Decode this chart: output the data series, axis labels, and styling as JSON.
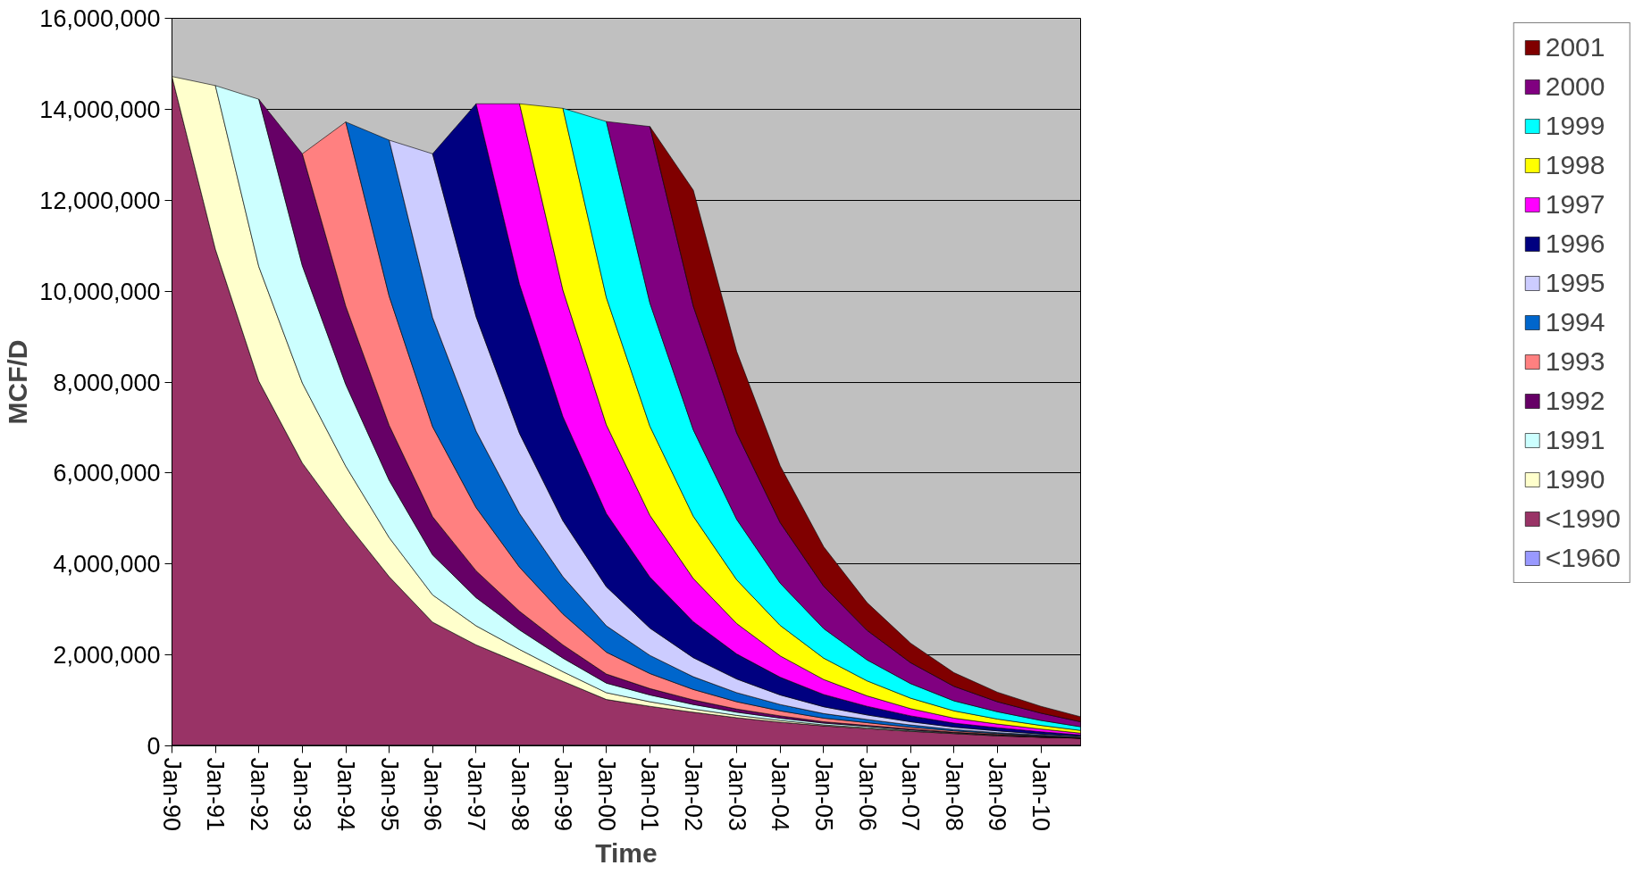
{
  "chart_data": {
    "type": "area",
    "stacked": true,
    "xlabel": "Time",
    "ylabel": "MCF/D",
    "legend": "right",
    "grid": "y",
    "x": [
      "1990-01",
      "1991-01",
      "1992-01",
      "1993-01",
      "1994-01",
      "1995-01",
      "1996-01",
      "1997-01",
      "1998-01",
      "1999-01",
      "2000-01",
      "2001-01",
      "2002-01",
      "2003-01",
      "2004-01",
      "2005-01",
      "2006-01",
      "2007-01",
      "2008-01",
      "2009-01",
      "2010-01",
      "2010-12"
    ],
    "xlim": [
      "1990-01",
      "2010-12"
    ],
    "xticks": [
      {
        "value": "1990-01",
        "label": "Jan-90"
      },
      {
        "value": "1991-01",
        "label": "Jan-91"
      },
      {
        "value": "1992-01",
        "label": "Jan-92"
      },
      {
        "value": "1993-01",
        "label": "Jan-93"
      },
      {
        "value": "1994-01",
        "label": "Jan-94"
      },
      {
        "value": "1995-01",
        "label": "Jan-95"
      },
      {
        "value": "1996-01",
        "label": "Jan-96"
      },
      {
        "value": "1997-01",
        "label": "Jan-97"
      },
      {
        "value": "1998-01",
        "label": "Jan-98"
      },
      {
        "value": "1999-01",
        "label": "Jan-99"
      },
      {
        "value": "2000-01",
        "label": "Jan-00"
      },
      {
        "value": "2001-01",
        "label": "Jan-01"
      },
      {
        "value": "2002-01",
        "label": "Jan-02"
      },
      {
        "value": "2003-01",
        "label": "Jan-03"
      },
      {
        "value": "2004-01",
        "label": "Jan-04"
      },
      {
        "value": "2005-01",
        "label": "Jan-05"
      },
      {
        "value": "2006-01",
        "label": "Jan-06"
      },
      {
        "value": "2007-01",
        "label": "Jan-07"
      },
      {
        "value": "2008-01",
        "label": "Jan-08"
      },
      {
        "value": "2009-01",
        "label": "Jan-09"
      },
      {
        "value": "2010-01",
        "label": "Jan-10"
      }
    ],
    "ylim": [
      0,
      16000000
    ],
    "yticks": [
      0,
      {
        "value": 2000000,
        "label": "2,000,000"
      },
      {
        "value": 4000000,
        "label": "4,000,000"
      },
      {
        "value": 6000000,
        "label": "6,000,000"
      },
      {
        "value": 8000000,
        "label": "8,000,000"
      },
      {
        "value": 10000000,
        "label": "10,000,000"
      },
      {
        "value": 12000000,
        "label": "12,000,000"
      },
      {
        "value": 14000000,
        "label": "14,000,000"
      },
      {
        "value": 16000000,
        "label": "16,000,000"
      }
    ],
    "series": [
      {
        "name": "<1960",
        "color": "#9999ff",
        "values": [
          20000,
          20000,
          20000,
          20000,
          20000,
          20000,
          20000,
          20000,
          20000,
          20000,
          20000,
          20000,
          20000,
          20000,
          20000,
          20000,
          20000,
          20000,
          20000,
          20000,
          20000,
          20000
        ]
      },
      {
        "name": "<1990",
        "color": "#993366",
        "values": [
          14700000,
          10900000,
          8000000,
          6200000,
          4900000,
          3700000,
          2700000,
          2200000,
          1800000,
          1400000,
          1000000,
          850000,
          720000,
          600000,
          500000,
          420000,
          360000,
          300000,
          250000,
          200000,
          170000,
          150000
        ]
      },
      {
        "name": "1990",
        "color": "#ffffcc",
        "values": [
          0,
          3600000,
          2520000,
          1760000,
          1230000,
          860000,
          600000,
          420000,
          300000,
          210000,
          150000,
          100000,
          70000,
          50000,
          40000,
          20000,
          20000,
          10000,
          10000,
          10000,
          0,
          0
        ]
      },
      {
        "name": "1991",
        "color": "#ccffff",
        "values": [
          null,
          0,
          3680000,
          2580000,
          1800000,
          1260000,
          880000,
          620000,
          430000,
          300000,
          210000,
          150000,
          100000,
          70000,
          50000,
          40000,
          30000,
          20000,
          10000,
          10000,
          10000,
          0
        ]
      },
      {
        "name": "1992",
        "color": "#660066",
        "values": [
          null,
          null,
          0,
          2460000,
          1720000,
          1210000,
          840000,
          590000,
          410000,
          290000,
          200000,
          140000,
          100000,
          70000,
          50000,
          30000,
          20000,
          20000,
          10000,
          10000,
          10000,
          0
        ]
      },
      {
        "name": "1993",
        "color": "#ff8080",
        "values": [
          null,
          null,
          null,
          0,
          4050000,
          2840000,
          1980000,
          1390000,
          970000,
          680000,
          480000,
          330000,
          230000,
          160000,
          110000,
          80000,
          60000,
          40000,
          30000,
          20000,
          10000,
          10000
        ]
      },
      {
        "name": "1994",
        "color": "#0066cc",
        "values": [
          null,
          null,
          null,
          null,
          0,
          3430000,
          2400000,
          1680000,
          1180000,
          820000,
          580000,
          400000,
          280000,
          200000,
          140000,
          100000,
          70000,
          50000,
          30000,
          20000,
          20000,
          10000
        ]
      },
      {
        "name": "1995",
        "color": "#ccccff",
        "values": [
          null,
          null,
          null,
          null,
          null,
          0,
          3600000,
          2520000,
          1760000,
          1230000,
          860000,
          600000,
          420000,
          300000,
          210000,
          150000,
          100000,
          70000,
          50000,
          40000,
          20000,
          20000
        ]
      },
      {
        "name": "1996",
        "color": "#000080",
        "values": [
          null,
          null,
          null,
          null,
          null,
          null,
          0,
          4680000,
          3280000,
          2290000,
          1610000,
          1120000,
          790000,
          550000,
          390000,
          270000,
          190000,
          130000,
          90000,
          70000,
          50000,
          30000
        ]
      },
      {
        "name": "1997",
        "color": "#ff00ff",
        "values": [
          null,
          null,
          null,
          null,
          null,
          null,
          null,
          0,
          3970000,
          2780000,
          1950000,
          1360000,
          950000,
          670000,
          470000,
          330000,
          230000,
          160000,
          110000,
          80000,
          60000,
          40000
        ]
      },
      {
        "name": "1998",
        "color": "#ffff00",
        "values": [
          null,
          null,
          null,
          null,
          null,
          null,
          null,
          null,
          0,
          4000000,
          2800000,
          1960000,
          1370000,
          960000,
          670000,
          470000,
          330000,
          230000,
          160000,
          110000,
          80000,
          60000
        ]
      },
      {
        "name": "1999",
        "color": "#00ffff",
        "values": [
          null,
          null,
          null,
          null,
          null,
          null,
          null,
          null,
          null,
          0,
          3870000,
          2710000,
          1900000,
          1330000,
          930000,
          650000,
          460000,
          320000,
          220000,
          160000,
          110000,
          80000
        ]
      },
      {
        "name": "2000",
        "color": "#800080",
        "values": [
          null,
          null,
          null,
          null,
          null,
          null,
          null,
          null,
          null,
          null,
          0,
          3880000,
          2720000,
          1900000,
          1330000,
          930000,
          650000,
          460000,
          320000,
          220000,
          160000,
          110000
        ]
      },
      {
        "name": "2001",
        "color": "#800000",
        "values": [
          null,
          null,
          null,
          null,
          null,
          null,
          null,
          null,
          null,
          null,
          null,
          0,
          2550000,
          1790000,
          1250000,
          870000,
          610000,
          430000,
          300000,
          210000,
          150000,
          110000
        ]
      }
    ]
  }
}
